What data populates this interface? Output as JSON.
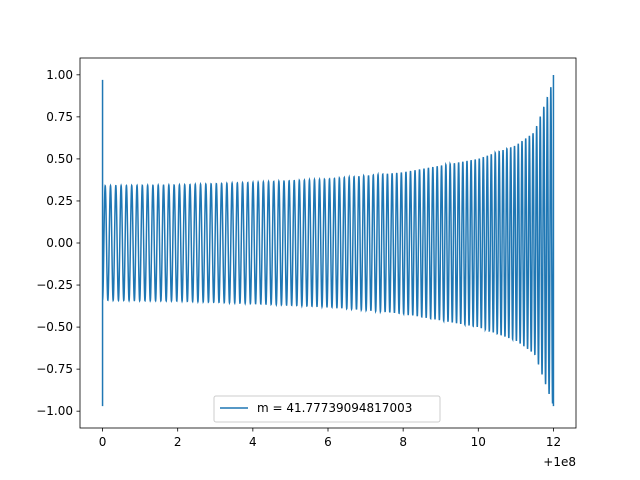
{
  "chart_data": {
    "type": "line",
    "title": "",
    "xlabel": "",
    "ylabel": "",
    "x_offset_label": "+1e8",
    "xlim": [
      -0.6,
      12.6
    ],
    "ylim": [
      -1.1,
      1.1
    ],
    "x_ticks": [
      0,
      2,
      4,
      6,
      8,
      10,
      12
    ],
    "x_tick_labels": [
      "0",
      "2",
      "4",
      "6",
      "8",
      "10",
      "12"
    ],
    "y_ticks": [
      1.0,
      0.75,
      0.5,
      0.25,
      0.0,
      -0.25,
      -0.5,
      -0.75,
      -1.0
    ],
    "y_tick_labels": [
      "1.00",
      "0.75",
      "0.50",
      "0.25",
      "0.00",
      "−0.25",
      "−0.50",
      "−0.75",
      "−1.00"
    ],
    "grid": false,
    "legend_position": "lower-center",
    "series": [
      {
        "name": "m = 41.77739094817003",
        "color": "#1f77b4",
        "x_start": 0,
        "x_end": 12,
        "initial_value": 0.97,
        "start_amplitude": 0.34,
        "end_amplitude": 0.97,
        "cycles": 100,
        "samples": [
          {
            "x": 0,
            "amplitude": 0.34
          },
          {
            "x": 2,
            "amplitude": 0.345
          },
          {
            "x": 4,
            "amplitude": 0.36
          },
          {
            "x": 6,
            "amplitude": 0.38
          },
          {
            "x": 8,
            "amplitude": 0.42
          },
          {
            "x": 10,
            "amplitude": 0.5
          },
          {
            "x": 11,
            "amplitude": 0.58
          },
          {
            "x": 11.5,
            "amplitude": 0.66
          },
          {
            "x": 12,
            "amplitude": 0.97
          }
        ]
      }
    ]
  }
}
